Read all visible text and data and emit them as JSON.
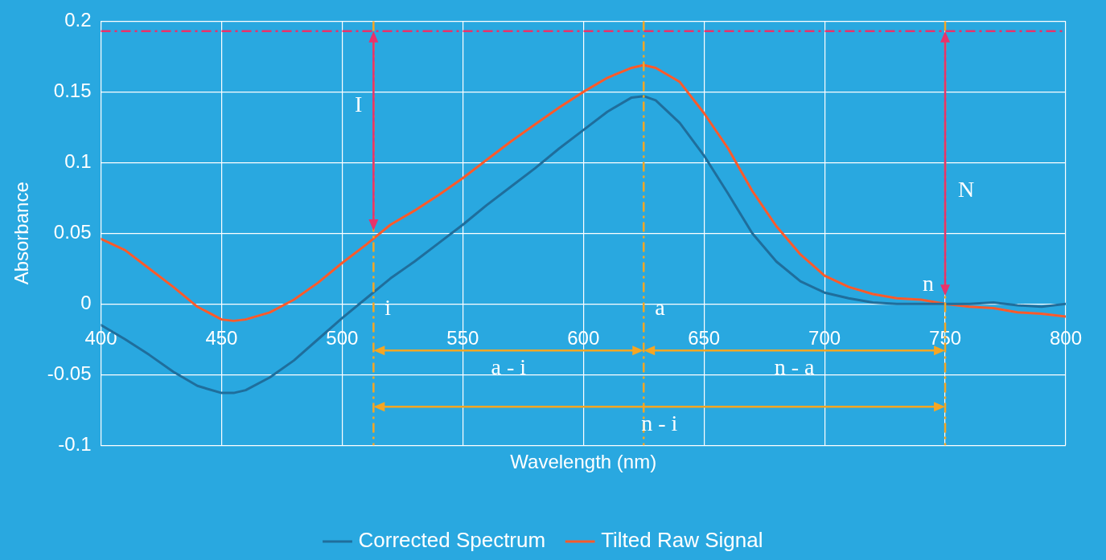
{
  "chart_data": {
    "type": "line",
    "xlabel": "Wavelength (nm)",
    "ylabel": "Absorbance",
    "x": [
      400,
      410,
      420,
      430,
      440,
      450,
      455,
      460,
      470,
      480,
      490,
      500,
      510,
      520,
      530,
      540,
      550,
      560,
      570,
      580,
      590,
      600,
      610,
      620,
      625,
      630,
      640,
      650,
      660,
      670,
      680,
      690,
      700,
      710,
      720,
      730,
      740,
      750,
      760,
      770,
      780,
      790,
      800
    ],
    "series": [
      {
        "name": "Corrected Spectrum",
        "color": "#1f6e9c",
        "values": [
          -0.015,
          -0.025,
          -0.036,
          -0.048,
          -0.058,
          -0.063,
          -0.063,
          -0.061,
          -0.052,
          -0.04,
          -0.025,
          -0.01,
          0.004,
          0.018,
          0.03,
          0.043,
          0.056,
          0.07,
          0.083,
          0.096,
          0.11,
          0.123,
          0.136,
          0.146,
          0.147,
          0.144,
          0.128,
          0.105,
          0.078,
          0.05,
          0.03,
          0.016,
          0.008,
          0.004,
          0.001,
          0,
          0,
          0,
          0,
          0.001,
          -0.001,
          -0.002,
          0
        ]
      },
      {
        "name": "Tilted Raw Signal",
        "color": "#ff5a2a",
        "values": [
          0.046,
          0.038,
          0.025,
          0.012,
          -0.002,
          -0.011,
          -0.012,
          -0.011,
          -0.006,
          0.003,
          0.015,
          0.029,
          0.042,
          0.056,
          0.066,
          0.077,
          0.089,
          0.102,
          0.115,
          0.127,
          0.139,
          0.15,
          0.16,
          0.167,
          0.169,
          0.167,
          0.157,
          0.135,
          0.11,
          0.08,
          0.055,
          0.035,
          0.02,
          0.012,
          0.007,
          0.004,
          0.003,
          0,
          -0.002,
          -0.003,
          -0.006,
          -0.007,
          -0.009
        ]
      }
    ],
    "xlim": [
      400,
      800
    ],
    "xticks": [
      400,
      450,
      500,
      550,
      600,
      650,
      700,
      750,
      800
    ],
    "ylim": [
      -0.1,
      0.2
    ],
    "yticks": [
      -0.1,
      -0.05,
      0,
      0.05,
      0.1,
      0.15,
      0.2
    ],
    "grid": true,
    "legend": "bottom",
    "marker": "none",
    "line_style": "solid",
    "ref_lines": [
      {
        "axis": "x",
        "value": 513,
        "label": "i",
        "color": "#f5a623",
        "line_style": "dashed"
      },
      {
        "axis": "x",
        "value": 625,
        "label": "a",
        "color": "#f5a623",
        "line_style": "dashed"
      },
      {
        "axis": "x",
        "value": 750,
        "label": "n",
        "color": "#f5a623",
        "line_style": "dashed"
      },
      {
        "axis": "y",
        "value": 0.193,
        "label": null,
        "color": "#e8336b",
        "line_style": "dashed"
      }
    ],
    "annotations": [
      {
        "text": "I",
        "x": 513,
        "y": 0.14
      },
      {
        "text": "N",
        "x": 750,
        "y": 0.08
      },
      "a - i",
      "n - a",
      "n - i"
    ]
  }
}
